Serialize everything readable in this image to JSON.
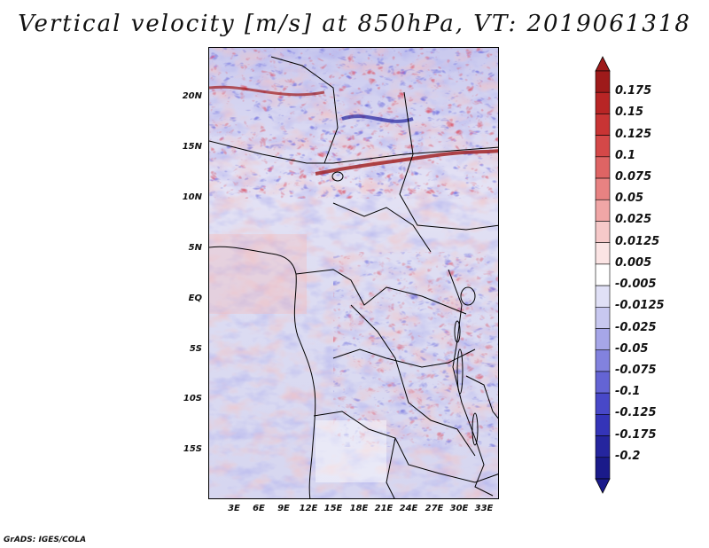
{
  "title": "Vertical velocity [m/s] at 850hPa, VT: 2019061318",
  "footer": "GrADS: IGES/COLA",
  "chart_data": {
    "type": "heatmap",
    "field": "Vertical velocity",
    "units": "m/s",
    "level": "850hPa",
    "valid_time": "2019061318",
    "lon_range": [
      0,
      36
    ],
    "lat_range": [
      -20,
      25
    ],
    "lat_ticks": [
      "20N",
      "15N",
      "10N",
      "5N",
      "EQ",
      "5S",
      "10S",
      "15S"
    ],
    "lon_ticks": [
      "3E",
      "6E",
      "9E",
      "12E",
      "15E",
      "18E",
      "21E",
      "24E",
      "27E",
      "30E",
      "33E"
    ],
    "colorbar": {
      "labels": [
        "0.175",
        "0.15",
        "0.125",
        "0.1",
        "0.075",
        "0.05",
        "0.025",
        "0.0125",
        "0.005",
        "-0.005",
        "-0.0125",
        "-0.025",
        "-0.05",
        "-0.075",
        "-0.1",
        "-0.125",
        "-0.175",
        "-0.2"
      ],
      "colors": [
        "#9e1a1a",
        "#b82525",
        "#c83434",
        "#d44848",
        "#de6464",
        "#e88282",
        "#f0a6a6",
        "#f6c9c9",
        "#fbe4e4",
        "#ffffff",
        "#e0e0f6",
        "#c8c8f0",
        "#a6a6e8",
        "#8282de",
        "#6464d4",
        "#4848c8",
        "#3434b8",
        "#25259e",
        "#1a1a8a"
      ]
    }
  }
}
